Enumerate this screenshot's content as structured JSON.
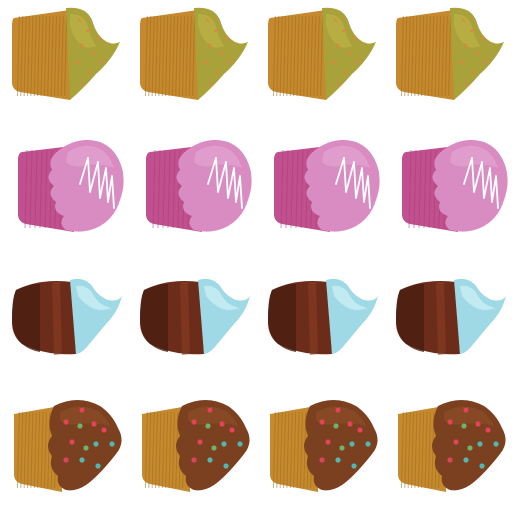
{
  "palette": {
    "background": "#ffffff",
    "liner_gold": "#c58a2e",
    "liner_gold_dark": "#a06a1c",
    "liner_gold_light": "#d9a449",
    "frosting_olive": "#a9a13a",
    "frosting_olive_light": "#c2b84a",
    "sprinkle_orange": "#f07a42",
    "liner_pink": "#c0508e",
    "liner_pink_dark": "#a53f7a",
    "frosting_lilac": "#d88cc2",
    "frosting_lilac_light": "#e4a3d2",
    "drizzle_white": "#ffffff",
    "liner_brown": "#6b2d1a",
    "liner_brown_dark": "#4a1e10",
    "liner_brown_light": "#8a3c22",
    "frosting_sky": "#9fd9e6",
    "frosting_sky_light": "#c9eef4",
    "frosting_choco": "#7a4020",
    "frosting_choco_light": "#8f4f2a",
    "dot_red": "#e0445a",
    "dot_green": "#6cb36a",
    "dot_teal": "#4fb8b0"
  },
  "grid": {
    "rows": [
      {
        "type": "olive-sprinkle-cupcake",
        "count": 4
      },
      {
        "type": "pink-drizzle-cupcake",
        "count": 4
      },
      {
        "type": "chocolate-blue-cupcake",
        "count": 4
      },
      {
        "type": "choco-dot-cupcake",
        "count": 4
      }
    ]
  }
}
